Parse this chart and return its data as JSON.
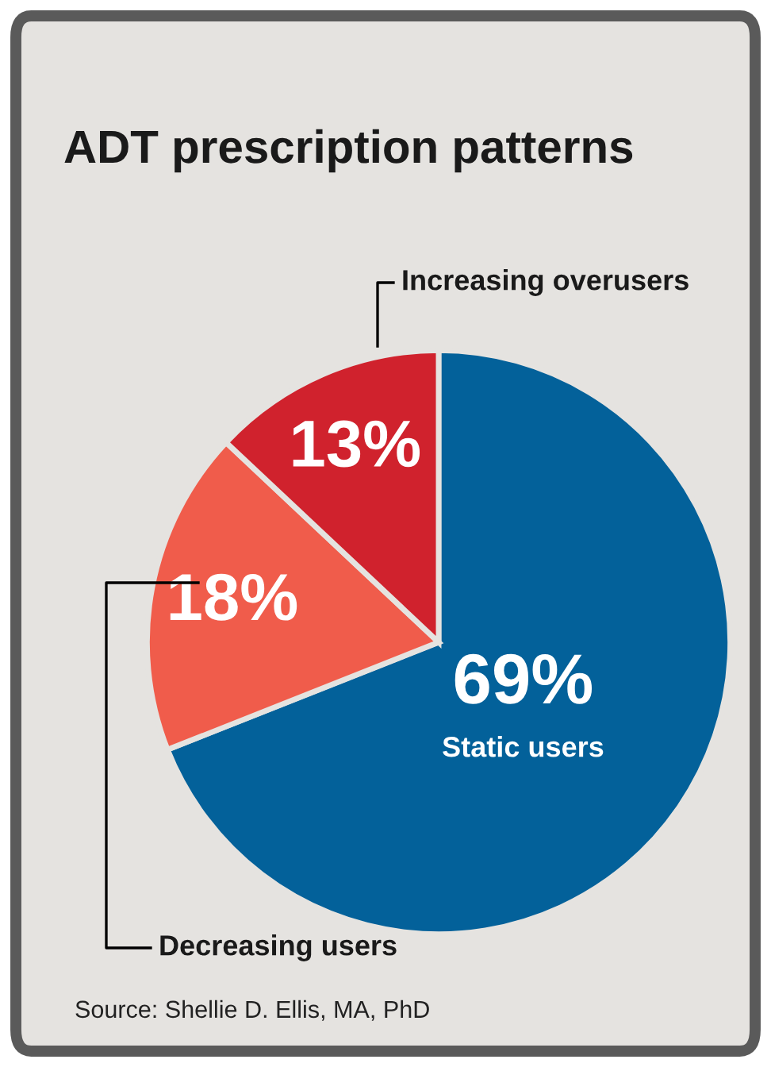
{
  "chart_data": {
    "type": "pie",
    "title": "ADT prescription patterns",
    "categories": [
      "Static users",
      "Decreasing users",
      "Increasing overusers"
    ],
    "values": [
      69,
      18,
      13
    ],
    "colors": [
      "#03619a",
      "#f05c4b",
      "#d0222d"
    ],
    "value_labels": [
      "69%",
      "18%",
      "13%"
    ],
    "annotations": [
      "Source: Shellie D. Ellis, MA, PhD"
    ]
  }
}
